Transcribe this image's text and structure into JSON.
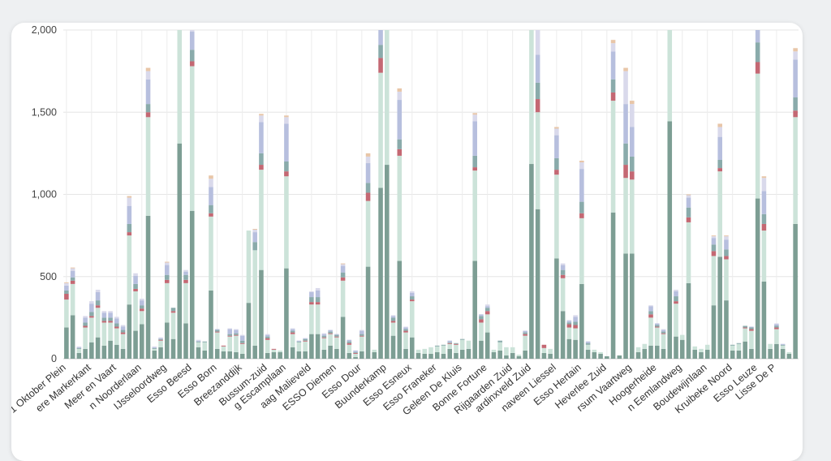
{
  "chart_data": {
    "type": "bar",
    "stacked": true,
    "title": "",
    "xlabel": "",
    "ylabel": "",
    "ylim": [
      0,
      2000
    ],
    "yticks": [
      0,
      500,
      1000,
      1500,
      2000
    ],
    "grid": true,
    "x_tick_labels_visible": [
      "1 Oktober Plein",
      "ere Markerkant",
      "Meer en Vaart",
      "n Noorderlaan",
      "IJsseloordweg",
      "Esso Beesd",
      "Esso Born",
      "Breezanddijk",
      "Bussum-zuid",
      "g Escamplaan",
      "aag Malieveld",
      "ESSO Diemen",
      "Esso Dour",
      "Buunderkamp",
      "Esso Esneux",
      "Esso Franeker",
      "Geleen De Kluis",
      "Bonne Fortune",
      "Rijgaarden Zuid",
      "ardinxveld Zuid",
      "naveen Liessel",
      "Esso Hertain",
      "Heverlee Zuid",
      "rsum Vaartweg",
      "Hoogerheide",
      "n Eemlandweg",
      "Boudewijnlaan",
      "Kruibeke Noord",
      "Esso Leuze",
      "Lisse De P"
    ],
    "series_colors": [
      "#7d9e94",
      "#cce3d9",
      "#c46873",
      "#8aabab",
      "#b7bfde",
      "#d9d9eb",
      "#e8c6a8"
    ],
    "stacks": [
      [
        190,
        170,
        35,
        20,
        30,
        15,
        5
      ],
      [
        265,
        190,
        20,
        20,
        40,
        15,
        5
      ],
      [
        35,
        25,
        0,
        5,
        5,
        5,
        0
      ],
      [
        60,
        130,
        10,
        20,
        30,
        10,
        0
      ],
      [
        100,
        150,
        10,
        25,
        50,
        15,
        0
      ],
      [
        130,
        180,
        15,
        30,
        50,
        15,
        0
      ],
      [
        80,
        140,
        10,
        20,
        30,
        10,
        0
      ],
      [
        110,
        110,
        10,
        20,
        30,
        10,
        0
      ],
      [
        85,
        100,
        10,
        20,
        30,
        10,
        0
      ],
      [
        60,
        90,
        10,
        15,
        20,
        10,
        0
      ],
      [
        330,
        420,
        20,
        50,
        110,
        50,
        10
      ],
      [
        170,
        240,
        15,
        30,
        50,
        15,
        0
      ],
      [
        210,
        80,
        15,
        20,
        30,
        10,
        0
      ],
      [
        870,
        600,
        30,
        50,
        150,
        50,
        20
      ],
      [
        50,
        10,
        0,
        5,
        5,
        5,
        0
      ],
      [
        70,
        40,
        5,
        5,
        5,
        5,
        0
      ],
      [
        220,
        240,
        20,
        30,
        60,
        15,
        5
      ],
      [
        120,
        160,
        10,
        20,
        0,
        0,
        0
      ],
      [
        1310,
        690,
        0,
        0,
        0,
        0,
        0
      ],
      [
        215,
        245,
        20,
        30,
        20,
        10,
        0
      ],
      [
        900,
        880,
        30,
        70,
        110,
        30,
        20
      ],
      [
        70,
        30,
        0,
        5,
        5,
        5,
        0
      ],
      [
        50,
        50,
        0,
        5,
        0,
        0,
        0
      ],
      [
        415,
        450,
        20,
        50,
        110,
        50,
        20
      ],
      [
        60,
        100,
        5,
        10,
        5,
        0,
        0
      ],
      [
        45,
        30,
        5,
        0,
        0,
        0,
        0
      ],
      [
        45,
        90,
        5,
        10,
        30,
        5,
        0
      ],
      [
        40,
        100,
        5,
        10,
        20,
        5,
        0
      ],
      [
        30,
        60,
        5,
        15,
        30,
        5,
        0
      ],
      [
        340,
        440,
        0,
        0,
        0,
        0,
        0
      ],
      [
        80,
        580,
        0,
        50,
        60,
        15,
        5
      ],
      [
        540,
        610,
        30,
        70,
        190,
        40,
        10
      ],
      [
        35,
        80,
        10,
        10,
        10,
        5,
        0
      ],
      [
        40,
        15,
        5,
        0,
        0,
        0,
        0
      ],
      [
        40,
        10,
        0,
        0,
        0,
        0,
        0
      ],
      [
        550,
        560,
        30,
        60,
        230,
        40,
        10
      ],
      [
        70,
        80,
        10,
        10,
        10,
        5,
        0
      ],
      [
        45,
        55,
        0,
        5,
        5,
        0,
        0
      ],
      [
        45,
        60,
        5,
        10,
        5,
        0,
        0
      ],
      [
        150,
        180,
        15,
        30,
        30,
        5,
        0
      ],
      [
        150,
        180,
        15,
        30,
        40,
        15,
        0
      ],
      [
        55,
        70,
        5,
        10,
        10,
        5,
        0
      ],
      [
        80,
        70,
        5,
        10,
        10,
        0,
        0
      ],
      [
        60,
        70,
        5,
        10,
        5,
        0,
        0
      ],
      [
        255,
        220,
        20,
        30,
        40,
        10,
        5
      ],
      [
        35,
        50,
        10,
        10,
        10,
        0,
        0
      ],
      [
        10,
        20,
        5,
        5,
        10,
        0,
        0
      ],
      [
        45,
        90,
        5,
        10,
        20,
        5,
        0
      ],
      [
        560,
        400,
        50,
        60,
        120,
        40,
        20
      ],
      [
        40,
        15,
        0,
        0,
        0,
        0,
        0
      ],
      [
        1040,
        700,
        90,
        80,
        100,
        0,
        0
      ],
      [
        1180,
        820,
        30,
        0,
        0,
        0,
        0
      ],
      [
        140,
        80,
        10,
        20,
        10,
        5,
        0
      ],
      [
        595,
        640,
        40,
        60,
        240,
        50,
        20
      ],
      [
        60,
        100,
        10,
        10,
        10,
        5,
        0
      ],
      [
        130,
        220,
        10,
        20,
        20,
        10,
        0
      ],
      [
        35,
        20,
        0,
        0,
        0,
        0,
        0
      ],
      [
        30,
        30,
        0,
        0,
        0,
        0,
        0
      ],
      [
        30,
        40,
        0,
        0,
        0,
        0,
        0
      ],
      [
        40,
        35,
        0,
        5,
        0,
        0,
        0
      ],
      [
        30,
        50,
        0,
        5,
        0,
        0,
        0
      ],
      [
        60,
        30,
        5,
        5,
        10,
        0,
        0
      ],
      [
        35,
        50,
        5,
        5,
        0,
        0,
        0
      ],
      [
        55,
        60,
        0,
        5,
        0,
        0,
        0
      ],
      [
        60,
        50,
        0,
        0,
        0,
        0,
        0
      ],
      [
        595,
        550,
        20,
        70,
        210,
        40,
        10
      ],
      [
        110,
        110,
        20,
        20,
        10,
        0,
        0
      ],
      [
        160,
        110,
        20,
        20,
        10,
        10,
        0
      ],
      [
        40,
        15,
        0,
        0,
        0,
        0,
        0
      ],
      [
        50,
        50,
        0,
        10,
        0,
        0,
        0
      ],
      [
        20,
        50,
        0,
        0,
        0,
        0,
        0
      ],
      [
        35,
        35,
        0,
        0,
        0,
        0,
        0
      ],
      [
        15,
        10,
        0,
        0,
        0,
        0,
        0
      ],
      [
        50,
        90,
        10,
        10,
        10,
        0,
        0
      ],
      [
        1185,
        815,
        70,
        90,
        150,
        60,
        20
      ],
      [
        910,
        590,
        80,
        100,
        170,
        190,
        20
      ],
      [
        35,
        30,
        20,
        0,
        0,
        0,
        0
      ],
      [
        30,
        30,
        0,
        0,
        0,
        0,
        0
      ],
      [
        610,
        510,
        30,
        70,
        140,
        40,
        10
      ],
      [
        290,
        200,
        20,
        30,
        30,
        10,
        0
      ],
      [
        120,
        70,
        20,
        10,
        10,
        5,
        0
      ],
      [
        115,
        70,
        20,
        20,
        30,
        10,
        0
      ],
      [
        455,
        400,
        30,
        70,
        200,
        40,
        10
      ],
      [
        55,
        30,
        0,
        10,
        10,
        0,
        0
      ],
      [
        40,
        15,
        0,
        0,
        0,
        0,
        0
      ],
      [
        30,
        10,
        0,
        0,
        0,
        0,
        0
      ],
      [
        15,
        0,
        0,
        0,
        0,
        0,
        0
      ],
      [
        890,
        680,
        50,
        80,
        170,
        50,
        20
      ],
      [
        20,
        0,
        0,
        0,
        0,
        0,
        0
      ],
      [
        640,
        460,
        80,
        130,
        240,
        200,
        20
      ],
      [
        640,
        450,
        50,
        90,
        180,
        140,
        20
      ],
      [
        40,
        30,
        0,
        0,
        0,
        0,
        0
      ],
      [
        60,
        30,
        0,
        0,
        0,
        0,
        0
      ],
      [
        80,
        170,
        20,
        20,
        30,
        5,
        0
      ],
      [
        80,
        110,
        5,
        10,
        10,
        0,
        0
      ],
      [
        60,
        90,
        5,
        10,
        10,
        5,
        0
      ],
      [
        1445,
        555,
        0,
        0,
        0,
        0,
        0
      ],
      [
        135,
        200,
        15,
        30,
        30,
        10,
        0
      ],
      [
        115,
        30,
        0,
        0,
        0,
        0,
        0
      ],
      [
        460,
        370,
        30,
        60,
        60,
        15,
        5
      ],
      [
        55,
        20,
        0,
        0,
        0,
        0,
        0
      ],
      [
        40,
        20,
        0,
        0,
        0,
        0,
        0
      ],
      [
        55,
        30,
        0,
        0,
        0,
        0,
        0
      ],
      [
        325,
        300,
        30,
        40,
        40,
        10,
        5
      ],
      [
        620,
        520,
        20,
        50,
        140,
        60,
        20
      ],
      [
        355,
        250,
        20,
        40,
        60,
        20,
        5
      ],
      [
        50,
        30,
        0,
        5,
        0,
        0,
        0
      ],
      [
        50,
        40,
        0,
        5,
        0,
        0,
        0
      ],
      [
        105,
        80,
        5,
        10,
        0,
        0,
        0
      ],
      [
        60,
        110,
        10,
        10,
        5,
        0,
        0
      ],
      [
        975,
        760,
        70,
        120,
        120,
        0,
        0
      ],
      [
        470,
        310,
        40,
        60,
        140,
        80,
        10
      ],
      [
        60,
        30,
        0,
        0,
        0,
        0,
        0
      ],
      [
        90,
        90,
        10,
        10,
        10,
        5,
        0
      ],
      [
        60,
        20,
        0,
        5,
        5,
        0,
        0
      ],
      [
        30,
        10,
        0,
        0,
        0,
        0,
        0
      ],
      [
        820,
        650,
        40,
        80,
        230,
        50,
        20
      ]
    ]
  }
}
